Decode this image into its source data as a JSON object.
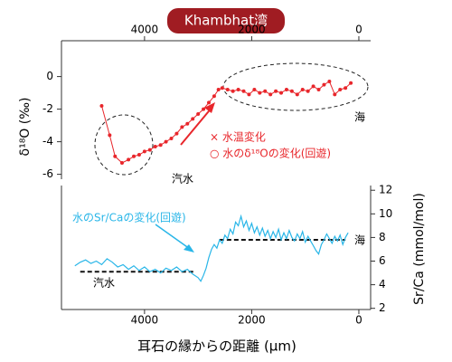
{
  "title": "Khambhat湾",
  "chart_data": [
    {
      "type": "line",
      "y_label": "δ¹⁸O (‰)",
      "x_axis_side": "top",
      "y_axis_side": "left",
      "xlim": [
        5550,
        -220
      ],
      "xticks": [
        4000,
        2000,
        0
      ],
      "ylim": [
        -6.3,
        2.2
      ],
      "yticks": [
        0,
        -2,
        -4,
        -6
      ],
      "annotations": [
        "× 水温変化",
        "○ 水のδ¹⁸Oの変化(回遊)",
        "汽水",
        "海"
      ],
      "series": [
        {
          "name": "δ18O",
          "color": "#e8262b",
          "x": [
            4800,
            4650,
            4550,
            4420,
            4300,
            4200,
            4100,
            4000,
            3900,
            3800,
            3700,
            3600,
            3500,
            3400,
            3300,
            3200,
            3100,
            3000,
            2900,
            2800,
            2700,
            2620,
            2550,
            2450,
            2350,
            2250,
            2150,
            2050,
            1950,
            1850,
            1750,
            1650,
            1550,
            1450,
            1350,
            1250,
            1150,
            1050,
            950,
            850,
            750,
            650,
            550,
            450,
            350,
            250,
            150
          ],
          "values": [
            -1.8,
            -3.6,
            -4.9,
            -5.3,
            -5.1,
            -4.9,
            -4.8,
            -4.6,
            -4.5,
            -4.3,
            -4.2,
            -4.0,
            -3.8,
            -3.5,
            -3.1,
            -2.9,
            -2.6,
            -2.3,
            -2.0,
            -1.6,
            -1.2,
            -0.8,
            -0.7,
            -0.8,
            -0.9,
            -0.8,
            -0.9,
            -1.1,
            -0.8,
            -1.0,
            -0.9,
            -1.1,
            -0.9,
            -1.0,
            -0.8,
            -0.9,
            -1.1,
            -0.8,
            -0.9,
            -0.6,
            -0.8,
            -0.5,
            -0.3,
            -1.1,
            -0.8,
            -0.7,
            -0.4
          ]
        }
      ]
    },
    {
      "type": "line",
      "x_label": "耳石の縁からの距離 (µm)",
      "y_label": "Sr/Ca (mmol/mol)",
      "x_axis_side": "bottom",
      "y_axis_side": "right",
      "xlim": [
        5550,
        -220
      ],
      "xticks": [
        4000,
        2000,
        0
      ],
      "ylim": [
        1.9,
        12.4
      ],
      "yticks": [
        2,
        4,
        6,
        8,
        10,
        12
      ],
      "annotations": [
        "水のSr/Caの変化(回遊)",
        "汽水",
        "海"
      ],
      "reference_lines": [
        {
          "value": 5.1,
          "x": [
            5200,
            3050
          ]
        },
        {
          "value": 7.8,
          "x": [
            2600,
            250
          ]
        }
      ],
      "series": [
        {
          "name": "Sr/Ca",
          "color": "#29b6e8",
          "x": [
            5300,
            5200,
            5100,
            5000,
            4900,
            4800,
            4700,
            4600,
            4500,
            4400,
            4300,
            4200,
            4100,
            4000,
            3900,
            3800,
            3700,
            3600,
            3500,
            3400,
            3300,
            3200,
            3100,
            3000,
            2950,
            2900,
            2850,
            2800,
            2750,
            2700,
            2650,
            2600,
            2550,
            2500,
            2450,
            2400,
            2350,
            2300,
            2250,
            2200,
            2150,
            2100,
            2050,
            2000,
            1950,
            1900,
            1850,
            1800,
            1750,
            1700,
            1650,
            1600,
            1550,
            1500,
            1450,
            1400,
            1350,
            1300,
            1250,
            1200,
            1150,
            1100,
            1050,
            1000,
            950,
            900,
            850,
            800,
            750,
            700,
            650,
            600,
            550,
            500,
            450,
            400,
            350,
            300,
            250,
            200
          ],
          "values": [
            5.6,
            5.9,
            6.1,
            5.8,
            6.0,
            5.7,
            6.2,
            5.9,
            5.5,
            5.7,
            5.3,
            5.6,
            5.2,
            5.5,
            5.1,
            5.3,
            5.0,
            5.4,
            5.2,
            5.5,
            5.1,
            5.3,
            4.9,
            4.6,
            4.3,
            4.8,
            5.4,
            6.3,
            7.0,
            7.4,
            7.1,
            7.8,
            7.5,
            8.2,
            7.9,
            8.7,
            8.3,
            9.3,
            9.0,
            9.8,
            8.9,
            9.4,
            8.6,
            9.2,
            8.4,
            8.9,
            8.2,
            8.8,
            8.1,
            8.6,
            7.9,
            8.5,
            8.0,
            8.7,
            7.8,
            8.4,
            7.9,
            8.6,
            8.0,
            7.7,
            8.3,
            7.9,
            8.5,
            7.6,
            8.1,
            7.7,
            7.3,
            6.9,
            6.6,
            7.4,
            7.8,
            8.3,
            7.9,
            7.5,
            8.1,
            7.7,
            8.2,
            7.4,
            8.0,
            8.4
          ]
        }
      ]
    }
  ]
}
